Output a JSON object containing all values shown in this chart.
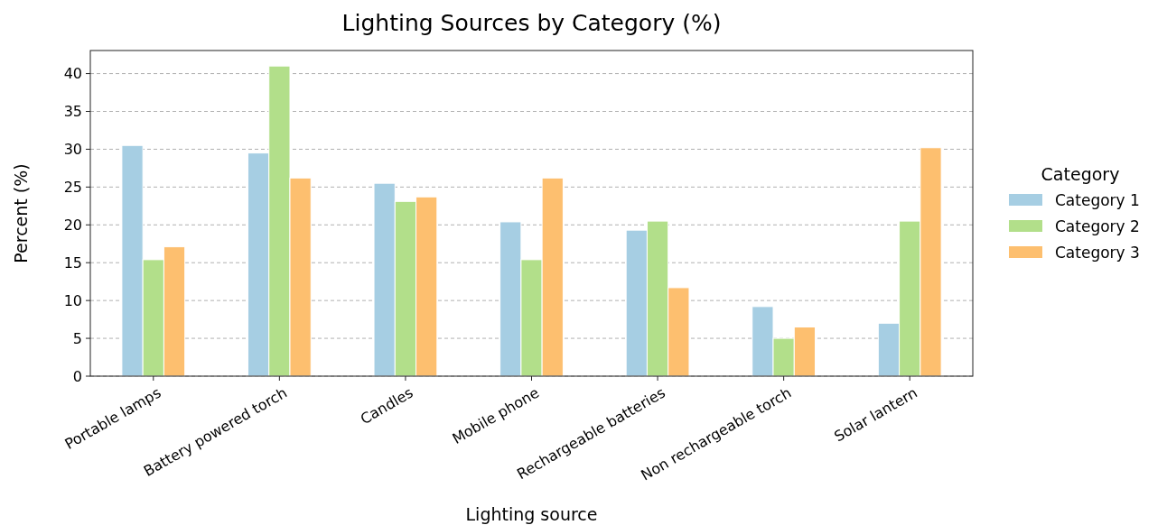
{
  "chart_data": {
    "type": "bar",
    "title": "Lighting Sources by Category (%)",
    "xlabel": "Lighting source",
    "ylabel": "Percent (%)",
    "legend_title": "Category",
    "categories": [
      "Portable lamps",
      "Battery powered torch",
      "Candles",
      "Mobile phone",
      "Rechargeable batteries",
      "Non rechargeable torch",
      "Solar lantern"
    ],
    "series": [
      {
        "name": "Category 1",
        "color": "#a6cee3",
        "values": [
          30.5,
          29.5,
          25.5,
          20.4,
          19.3,
          9.2,
          7.0
        ]
      },
      {
        "name": "Category 2",
        "color": "#b2df8a",
        "values": [
          15.4,
          41.0,
          23.1,
          15.4,
          20.5,
          5.0,
          20.5
        ]
      },
      {
        "name": "Category 3",
        "color": "#fdbf6f",
        "values": [
          17.1,
          26.2,
          23.7,
          26.2,
          11.7,
          6.5,
          30.2
        ]
      }
    ],
    "ylim": [
      0,
      43.05
    ],
    "yticks": [
      0,
      5,
      10,
      15,
      20,
      25,
      30,
      35,
      40
    ],
    "grid": "y",
    "legend": "right"
  }
}
